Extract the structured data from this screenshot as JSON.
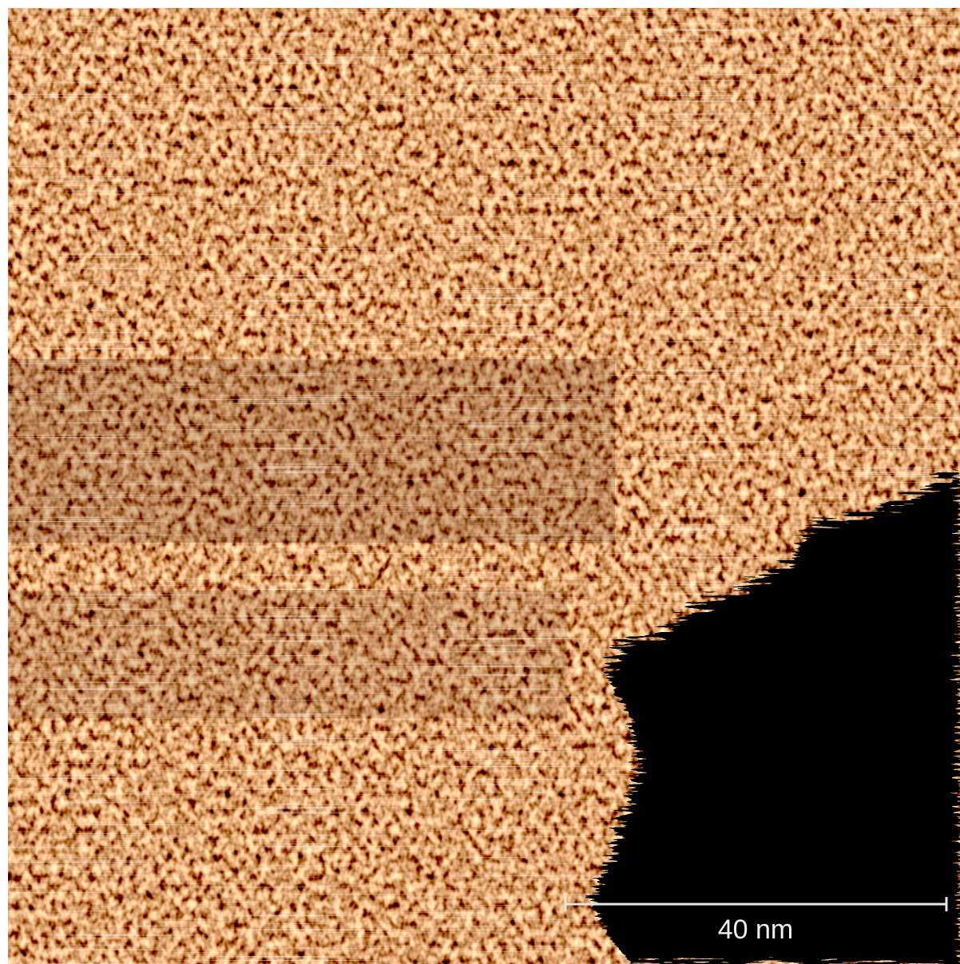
{
  "scale_bar": {
    "label": "40 nm"
  }
}
